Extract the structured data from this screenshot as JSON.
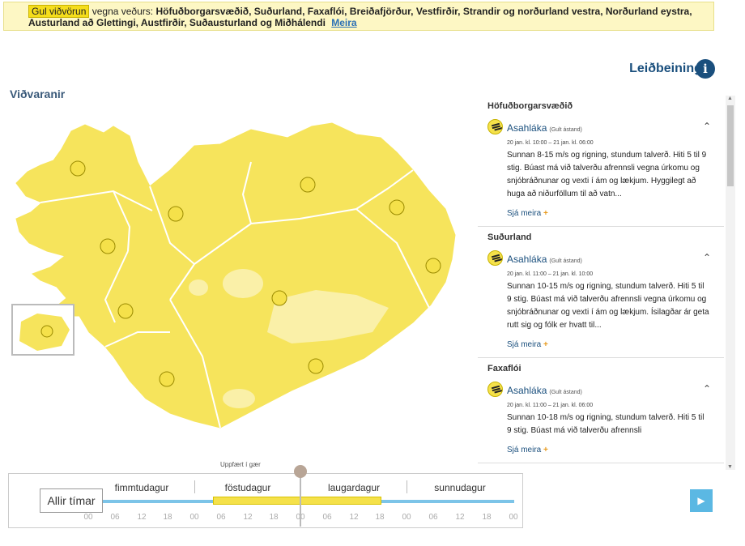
{
  "banner": {
    "tag": "Gul viðvörun",
    "pre": "vegna veðurs:",
    "regions": "Höfuðborgarsvæðið, Suðurland, Faxaflói, Breiðafjörður, Vestfirðir, Strandir og norðurland vestra, Norðurland eystra, Austurland að Glettingi, Austfirðir, Suðausturland og Miðhálendi",
    "more": "Meira"
  },
  "guide": {
    "label": "Leiðbeiningar",
    "icon": "info-icon"
  },
  "map": {
    "title": "Viðvaranir",
    "updated": "Uppfært í gær"
  },
  "colors": {
    "warning_yellow": "#f6e45c",
    "accent_blue": "#1a4f7d",
    "timeline_blue": "#5bb8e3"
  },
  "warnings": [
    {
      "region": "Höfuðborgarsvæðið",
      "name": "Asahláka",
      "state": "(Gult ástand)",
      "time": "20 jan. kl. 10:00 – 21 jan. kl. 06:00",
      "desc": "Sunnan 8-15 m/s og rigning, stundum talverð. Hiti 5 til 9 stig. Búast má við talverðu afrennsli vegna úrkomu og snjóbráðnunar og vexti í ám og lækjum. Hyggilegt að huga að niðurföllum til að vatn...",
      "more": "Sjá meira"
    },
    {
      "region": "Suðurland",
      "name": "Asahláka",
      "state": "(Gult ástand)",
      "time": "20 jan. kl. 11:00 – 21 jan. kl. 10:00",
      "desc": "Sunnan 10-15 m/s og rigning, stundum talverð. Hiti 5 til 9 stig. Búast má við talverðu afrennsli vegna úrkomu og snjóbráðnunar og vexti í ám og lækjum. Ísilagðar ár geta rutt sig og fólk er hvatt til...",
      "more": "Sjá meira"
    },
    {
      "region": "Faxaflói",
      "name": "Asahláka",
      "state": "(Gult ástand)",
      "time": "20 jan. kl. 11:00 – 21 jan. kl. 06:00",
      "desc": "Sunnan 10-18 m/s og rigning, stundum talverð. Hiti 5 til 9 stig. Búast má við talverðu afrennsli",
      "more": "Sjá meira"
    }
  ],
  "timeline": {
    "all_label": "Allir tímar",
    "days": [
      "fimmtudagur",
      "föstudagur",
      "laugardagur",
      "sunnudagur"
    ],
    "hours": [
      "00",
      "06",
      "12",
      "18",
      "00",
      "06",
      "12",
      "18",
      "00",
      "06",
      "12",
      "18",
      "00",
      "06",
      "12",
      "18",
      "00"
    ]
  }
}
